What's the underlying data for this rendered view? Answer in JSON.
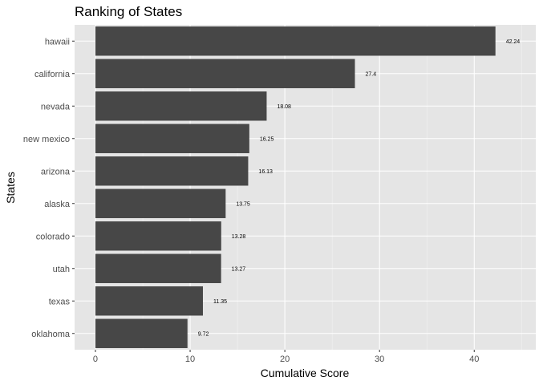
{
  "chart_data": {
    "type": "bar",
    "orientation": "horizontal",
    "title": "Ranking of States",
    "xlabel": "Cumulative Score",
    "ylabel": "States",
    "categories": [
      "hawaii",
      "california",
      "nevada",
      "new mexico",
      "arizona",
      "alaska",
      "colorado",
      "utah",
      "texas",
      "oklahoma"
    ],
    "values": [
      42.24,
      27.4,
      18.08,
      16.25,
      16.13,
      13.75,
      13.28,
      13.27,
      11.35,
      9.72
    ],
    "data_labels": [
      "42.24",
      "27.4",
      "18.08",
      "16.25",
      "16.13",
      "13.75",
      "13.28",
      "13.27",
      "11.35",
      "9.72"
    ],
    "xlim": [
      -2.2,
      46.5
    ],
    "x_ticks": [
      0,
      10,
      20,
      30,
      40
    ],
    "x_tick_labels": [
      "0",
      "10",
      "20",
      "30",
      "40"
    ],
    "grid": true,
    "legend": "none",
    "colors": {
      "bar": "#474747",
      "panel": "#e5e5e5",
      "grid_major": "#ffffff",
      "grid_minor": "#f2f2f2",
      "tick_text": "#4d4d4d"
    }
  }
}
